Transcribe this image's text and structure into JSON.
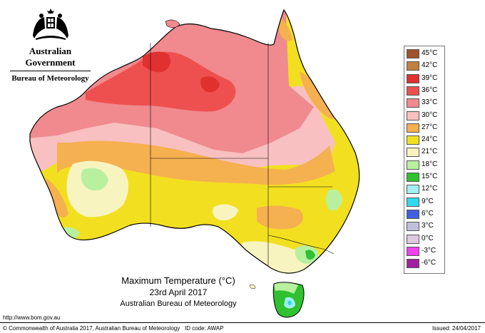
{
  "branding": {
    "government": "Australian Government",
    "bureau": "Bureau of Meteorology"
  },
  "legend": {
    "items": [
      {
        "label": "45°C",
        "color": "#a0522d"
      },
      {
        "label": "42°C",
        "color": "#c08040"
      },
      {
        "label": "39°C",
        "color": "#e03030"
      },
      {
        "label": "36°C",
        "color": "#ee5050"
      },
      {
        "label": "33°C",
        "color": "#f08a8e"
      },
      {
        "label": "30°C",
        "color": "#f8c0c0"
      },
      {
        "label": "27°C",
        "color": "#f5b050"
      },
      {
        "label": "24°C",
        "color": "#f2e020"
      },
      {
        "label": "21°C",
        "color": "#f8f4c0"
      },
      {
        "label": "18°C",
        "color": "#b8f0a0"
      },
      {
        "label": "15°C",
        "color": "#30c030"
      },
      {
        "label": "12°C",
        "color": "#a0f0f0"
      },
      {
        "label": "9°C",
        "color": "#30d8f0"
      },
      {
        "label": "6°C",
        "color": "#4060e0"
      },
      {
        "label": "3°C",
        "color": "#c0c0d8"
      },
      {
        "label": "0°C",
        "color": "#e0c8e0"
      },
      {
        "label": "-3°C",
        "color": "#f040f0"
      },
      {
        "label": "-6°C",
        "color": "#a020a0"
      }
    ]
  },
  "caption": {
    "title": "Maximum Temperature (°C)",
    "date": "23rd April 2017",
    "source": "Australian Bureau of Meteorology"
  },
  "footer": {
    "url": "http://www.bom.gov.au",
    "copyright": "© Commonwealth of Australia 2017, Australian Bureau of Meteorology",
    "id_code": "ID code: AWAP",
    "issued": "Issued: 24/04/2017"
  },
  "colors": {
    "c39": "#e03030",
    "c36": "#ee5050",
    "c33": "#f08a8e",
    "c30": "#f8c0c0",
    "c27": "#f5b050",
    "c24": "#f2e020",
    "c21": "#f8f4c0",
    "c18": "#b8f0a0",
    "c15": "#30c030"
  }
}
